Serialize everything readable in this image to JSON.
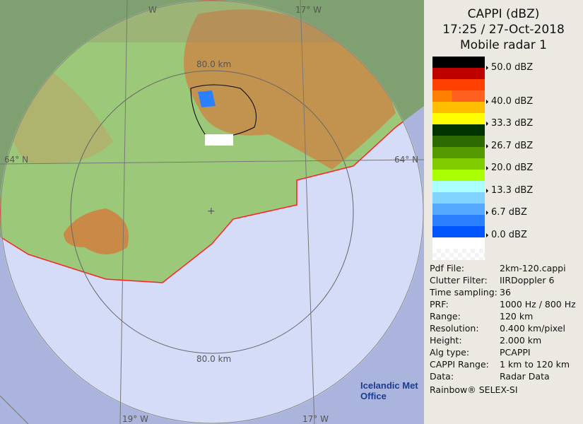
{
  "header": {
    "title": "CAPPI (dBZ)",
    "datetime": "17:25 / 27-Oct-2018",
    "radar": "Mobile radar 1"
  },
  "legend": {
    "colors": [
      "#000000",
      "#bf0000",
      "#ff4000",
      "#ff8000",
      "#ffbf00",
      "#ffff00",
      "#003300",
      "#2d6a00",
      "#559900",
      "#80cc00",
      "#aaff00",
      "#aaffff",
      "#80d4ff",
      "#55aaff",
      "#2b80ff",
      "#0055ff",
      "#ffffff"
    ],
    "labels": [
      "50.0 dBZ",
      "40.0 dBZ",
      "33.3 dBZ",
      "26.7 dBZ",
      "20.0 dBZ",
      "13.3 dBZ",
      "6.7 dBZ",
      "0.0 dBZ"
    ]
  },
  "info": [
    {
      "key": "Pdf File:",
      "value": "2km-120.cappi"
    },
    {
      "key": "Clutter Filter:",
      "value": "IIRDoppler 6"
    },
    {
      "key": "Time sampling:",
      "value": "36"
    },
    {
      "key": "PRF:",
      "value": "1000 Hz / 800 Hz"
    },
    {
      "key": "Range:",
      "value": "120 km"
    },
    {
      "key": "Resolution:",
      "value": "0.400 km/pixel"
    },
    {
      "key": "Height:",
      "value": "2.000 km"
    },
    {
      "key": "Alg type:",
      "value": "PCAPPI"
    },
    {
      "key": "CAPPI Range:",
      "value": "1 km to 120 km"
    },
    {
      "key": "Data:",
      "value": "Radar Data"
    }
  ],
  "footer": "Rainbow® SELEX-SI",
  "logo": {
    "line1": "Icelandic Met",
    "line2": "Office"
  },
  "map": {
    "range_ring_top": "80.0 km",
    "range_ring_bottom": "80.0 km",
    "lat_left": "64° N",
    "lat_right": "64° N",
    "lon_top_left": "W",
    "lon_top_right": "17° W",
    "lon_bottom_left": "19° W",
    "lon_bottom_right": "17° W",
    "colors": {
      "ocean": "#d4dcf8",
      "outside": "#aab4dd",
      "land": "#9cc87a",
      "highland": "#c98a48",
      "coast": "#ff2020"
    }
  }
}
